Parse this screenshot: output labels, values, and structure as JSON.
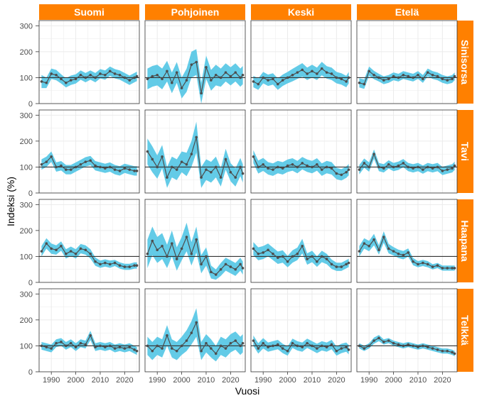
{
  "chart_data": {
    "type": "line",
    "xlabel": "Vuosi",
    "ylabel": "Indeksi (%)",
    "xlim": [
      1985,
      2026
    ],
    "ylim": [
      0,
      320
    ],
    "x_ticks": [
      1990,
      2000,
      2010,
      2020
    ],
    "y_ticks": [
      0,
      100,
      200,
      300
    ],
    "reference_line": 100,
    "columns": [
      "Suomi",
      "Pohjoinen",
      "Keski",
      "Etelä"
    ],
    "rows": [
      "Sinisorsa",
      "Tavi",
      "Haapana",
      "Telkkä"
    ],
    "strip_color": "#FF8000",
    "band_color": "#5BC8E6",
    "line_color": "#4D4D4D",
    "grid": true,
    "panels": [
      {
        "row": "Sinisorsa",
        "col": "Suomi",
        "x": [
          1986,
          1988,
          1990,
          1992,
          1994,
          1996,
          1998,
          2000,
          2002,
          2004,
          2006,
          2008,
          2010,
          2012,
          2014,
          2016,
          2018,
          2020,
          2022,
          2024,
          2025
        ],
        "y": [
          85,
          80,
          115,
          110,
          95,
          80,
          90,
          95,
          110,
          100,
          110,
          100,
          115,
          110,
          125,
          115,
          110,
          100,
          90,
          100,
          105
        ],
        "band": [
          25,
          20,
          20,
          20,
          18,
          18,
          18,
          18,
          18,
          18,
          18,
          18,
          18,
          18,
          18,
          18,
          18,
          18,
          18,
          18,
          18
        ]
      },
      {
        "row": "Sinisorsa",
        "col": "Pohjoinen",
        "x": [
          1986,
          1988,
          1990,
          1992,
          1994,
          1996,
          1998,
          2000,
          2002,
          2004,
          2006,
          2008,
          2010,
          2012,
          2014,
          2016,
          2018,
          2020,
          2022,
          2024,
          2025
        ],
        "y": [
          95,
          105,
          110,
          95,
          125,
          80,
          120,
          60,
          90,
          150,
          160,
          40,
          140,
          90,
          110,
          100,
          120,
          105,
          120,
          100,
          110
        ],
        "band": [
          40,
          40,
          40,
          40,
          40,
          40,
          40,
          40,
          45,
          50,
          50,
          40,
          45,
          40,
          40,
          35,
          35,
          35,
          35,
          35,
          35
        ]
      },
      {
        "row": "Sinisorsa",
        "col": "Keski",
        "x": [
          1986,
          1988,
          1990,
          1992,
          1994,
          1996,
          1998,
          2000,
          2002,
          2004,
          2006,
          2008,
          2010,
          2012,
          2014,
          2016,
          2018,
          2020,
          2022,
          2024,
          2025
        ],
        "y": [
          85,
          75,
          100,
          90,
          95,
          75,
          90,
          100,
          110,
          120,
          130,
          115,
          125,
          115,
          135,
          120,
          115,
          100,
          95,
          85,
          100
        ],
        "band": [
          22,
          22,
          22,
          22,
          22,
          22,
          22,
          22,
          24,
          25,
          26,
          24,
          25,
          24,
          26,
          24,
          24,
          22,
          22,
          22,
          22
        ]
      },
      {
        "row": "Sinisorsa",
        "col": "Etelä",
        "x": [
          1986,
          1988,
          1990,
          1992,
          1994,
          1996,
          1998,
          2000,
          2002,
          2004,
          2006,
          2008,
          2010,
          2012,
          2014,
          2016,
          2018,
          2020,
          2022,
          2024,
          2025
        ],
        "y": [
          80,
          75,
          125,
          110,
          100,
          90,
          95,
          105,
          100,
          110,
          105,
          100,
          110,
          95,
          120,
          110,
          105,
          95,
          90,
          95,
          105
        ],
        "band": [
          18,
          18,
          18,
          16,
          15,
          15,
          15,
          15,
          15,
          15,
          15,
          15,
          15,
          15,
          15,
          15,
          15,
          15,
          15,
          15,
          15
        ]
      },
      {
        "row": "Tavi",
        "col": "Suomi",
        "x": [
          1986,
          1988,
          1990,
          1992,
          1994,
          1996,
          1998,
          2000,
          2002,
          2004,
          2006,
          2008,
          2010,
          2012,
          2014,
          2016,
          2018,
          2020,
          2022,
          2024,
          2025
        ],
        "y": [
          110,
          120,
          140,
          100,
          105,
          90,
          90,
          100,
          110,
          120,
          125,
          105,
          100,
          95,
          100,
          90,
          85,
          95,
          90,
          85,
          85
        ],
        "band": [
          20,
          20,
          20,
          18,
          18,
          18,
          18,
          18,
          18,
          18,
          18,
          18,
          18,
          18,
          18,
          18,
          18,
          18,
          18,
          18,
          18
        ]
      },
      {
        "row": "Tavi",
        "col": "Pohjoinen",
        "x": [
          1986,
          1988,
          1990,
          1992,
          1994,
          1996,
          1998,
          2000,
          2002,
          2004,
          2006,
          2008,
          2010,
          2012,
          2014,
          2016,
          2018,
          2020,
          2022,
          2024,
          2025
        ],
        "y": [
          160,
          130,
          100,
          140,
          60,
          100,
          90,
          120,
          110,
          150,
          215,
          60,
          90,
          80,
          100,
          60,
          130,
          80,
          60,
          100,
          75
        ],
        "band": [
          50,
          50,
          45,
          45,
          40,
          40,
          40,
          40,
          45,
          50,
          60,
          40,
          40,
          40,
          40,
          35,
          40,
          35,
          35,
          35,
          35
        ]
      },
      {
        "row": "Tavi",
        "col": "Keski",
        "x": [
          1986,
          1988,
          1990,
          1992,
          1994,
          1996,
          1998,
          2000,
          2002,
          2004,
          2006,
          2008,
          2010,
          2012,
          2014,
          2016,
          2018,
          2020,
          2022,
          2024,
          2025
        ],
        "y": [
          140,
          100,
          110,
          95,
          90,
          100,
          95,
          105,
          110,
          100,
          115,
          105,
          100,
          110,
          90,
          100,
          95,
          75,
          70,
          80,
          90
        ],
        "band": [
          25,
          25,
          25,
          24,
          24,
          24,
          24,
          24,
          24,
          24,
          24,
          24,
          24,
          24,
          24,
          24,
          24,
          22,
          22,
          22,
          22
        ]
      },
      {
        "row": "Tavi",
        "col": "Etelä",
        "x": [
          1986,
          1988,
          1990,
          1992,
          1994,
          1996,
          1998,
          2000,
          2002,
          2004,
          2006,
          2008,
          2010,
          2012,
          2014,
          2016,
          2018,
          2020,
          2022,
          2024,
          2025
        ],
        "y": [
          90,
          115,
          100,
          150,
          100,
          95,
          110,
          100,
          105,
          115,
          100,
          95,
          100,
          90,
          100,
          95,
          100,
          85,
          90,
          95,
          105
        ],
        "band": [
          18,
          18,
          18,
          18,
          16,
          16,
          16,
          16,
          16,
          16,
          16,
          16,
          16,
          16,
          16,
          16,
          16,
          16,
          16,
          16,
          16
        ]
      },
      {
        "row": "Haapana",
        "col": "Suomi",
        "x": [
          1986,
          1988,
          1990,
          1992,
          1994,
          1996,
          1998,
          2000,
          2002,
          2004,
          2006,
          2008,
          2010,
          2012,
          2014,
          2016,
          2018,
          2020,
          2022,
          2024,
          2025
        ],
        "y": [
          120,
          150,
          130,
          125,
          140,
          110,
          120,
          110,
          130,
          125,
          110,
          80,
          70,
          75,
          70,
          75,
          65,
          60,
          60,
          65,
          65
        ],
        "band": [
          20,
          20,
          20,
          18,
          18,
          18,
          18,
          18,
          18,
          18,
          18,
          16,
          14,
          14,
          14,
          12,
          12,
          12,
          12,
          12,
          12
        ]
      },
      {
        "row": "Haapana",
        "col": "Pohjoinen",
        "x": [
          1986,
          1988,
          1990,
          1992,
          1994,
          1996,
          1998,
          2000,
          2002,
          2004,
          2006,
          2008,
          2010,
          2012,
          2014,
          2016,
          2018,
          2020,
          2022,
          2024,
          2025
        ],
        "y": [
          110,
          160,
          125,
          140,
          100,
          150,
          90,
          130,
          175,
          110,
          165,
          70,
          100,
          40,
          30,
          50,
          70,
          60,
          50,
          70,
          55
        ],
        "band": [
          55,
          55,
          50,
          50,
          45,
          50,
          45,
          45,
          55,
          45,
          50,
          35,
          35,
          25,
          20,
          25,
          25,
          25,
          25,
          25,
          25
        ]
      },
      {
        "row": "Haapana",
        "col": "Keski",
        "x": [
          1986,
          1988,
          1990,
          1992,
          1994,
          1996,
          1998,
          2000,
          2002,
          2004,
          2006,
          2008,
          2010,
          2012,
          2014,
          2016,
          2018,
          2020,
          2022,
          2024,
          2025
        ],
        "y": [
          130,
          110,
          115,
          125,
          110,
          95,
          100,
          80,
          100,
          110,
          140,
          90,
          100,
          80,
          100,
          90,
          70,
          60,
          60,
          70,
          75
        ],
        "band": [
          25,
          25,
          25,
          25,
          24,
          24,
          24,
          22,
          24,
          24,
          28,
          22,
          22,
          20,
          22,
          20,
          18,
          16,
          16,
          16,
          16
        ]
      },
      {
        "row": "Haapana",
        "col": "Etelä",
        "x": [
          1986,
          1988,
          1990,
          1992,
          1994,
          1996,
          1998,
          2000,
          2002,
          2004,
          2006,
          2008,
          2010,
          2012,
          2014,
          2016,
          2018,
          2020,
          2022,
          2024,
          2025
        ],
        "y": [
          120,
          150,
          140,
          165,
          125,
          175,
          130,
          120,
          110,
          105,
          115,
          80,
          70,
          75,
          70,
          60,
          65,
          55,
          55,
          55,
          55
        ],
        "band": [
          20,
          20,
          20,
          22,
          18,
          22,
          18,
          16,
          16,
          16,
          16,
          14,
          12,
          12,
          12,
          10,
          10,
          10,
          10,
          10,
          10
        ]
      },
      {
        "row": "Telkkä",
        "col": "Suomi",
        "x": [
          1986,
          1988,
          1990,
          1992,
          1994,
          1996,
          1998,
          2000,
          2002,
          2004,
          2006,
          2008,
          2010,
          2012,
          2014,
          2016,
          2018,
          2020,
          2022,
          2024,
          2025
        ],
        "y": [
          100,
          95,
          90,
          110,
          115,
          100,
          110,
          95,
          110,
          105,
          140,
          95,
          100,
          95,
          100,
          90,
          95,
          90,
          95,
          85,
          80
        ],
        "band": [
          15,
          15,
          15,
          15,
          15,
          15,
          15,
          15,
          15,
          15,
          18,
          15,
          15,
          15,
          15,
          15,
          15,
          15,
          15,
          15,
          15
        ]
      },
      {
        "row": "Telkkä",
        "col": "Pohjoinen",
        "x": [
          1986,
          1988,
          1990,
          1992,
          1994,
          1996,
          1998,
          2000,
          2002,
          2004,
          2006,
          2008,
          2010,
          2012,
          2014,
          2016,
          2018,
          2020,
          2022,
          2024,
          2025
        ],
        "y": [
          100,
          80,
          100,
          90,
          140,
          90,
          80,
          100,
          120,
          150,
          190,
          80,
          110,
          90,
          70,
          100,
          90,
          110,
          120,
          100,
          110
        ],
        "band": [
          35,
          35,
          35,
          35,
          40,
          35,
          35,
          35,
          40,
          45,
          55,
          35,
          35,
          35,
          30,
          35,
          35,
          35,
          35,
          35,
          35
        ]
      },
      {
        "row": "Telkkä",
        "col": "Keski",
        "x": [
          1986,
          1988,
          1990,
          1992,
          1994,
          1996,
          1998,
          2000,
          2002,
          2004,
          2006,
          2008,
          2010,
          2012,
          2014,
          2016,
          2018,
          2020,
          2022,
          2024,
          2025
        ],
        "y": [
          120,
          90,
          110,
          95,
          100,
          105,
          90,
          80,
          110,
          100,
          95,
          110,
          100,
          90,
          100,
          95,
          105,
          80,
          90,
          95,
          85
        ],
        "band": [
          20,
          20,
          20,
          18,
          18,
          18,
          18,
          18,
          18,
          18,
          18,
          18,
          18,
          18,
          18,
          18,
          18,
          18,
          18,
          18,
          18
        ]
      },
      {
        "row": "Telkkä",
        "col": "Etelä",
        "x": [
          1986,
          1988,
          1990,
          1992,
          1994,
          1996,
          1998,
          2000,
          2002,
          2004,
          2006,
          2008,
          2010,
          2012,
          2014,
          2016,
          2018,
          2020,
          2022,
          2024,
          2025
        ],
        "y": [
          100,
          90,
          100,
          120,
          130,
          115,
          120,
          110,
          105,
          100,
          105,
          100,
          95,
          100,
          95,
          90,
          85,
          80,
          80,
          75,
          70
        ],
        "band": [
          10,
          10,
          10,
          12,
          12,
          10,
          10,
          10,
          10,
          10,
          10,
          10,
          10,
          10,
          10,
          10,
          10,
          10,
          10,
          10,
          10
        ]
      }
    ]
  }
}
